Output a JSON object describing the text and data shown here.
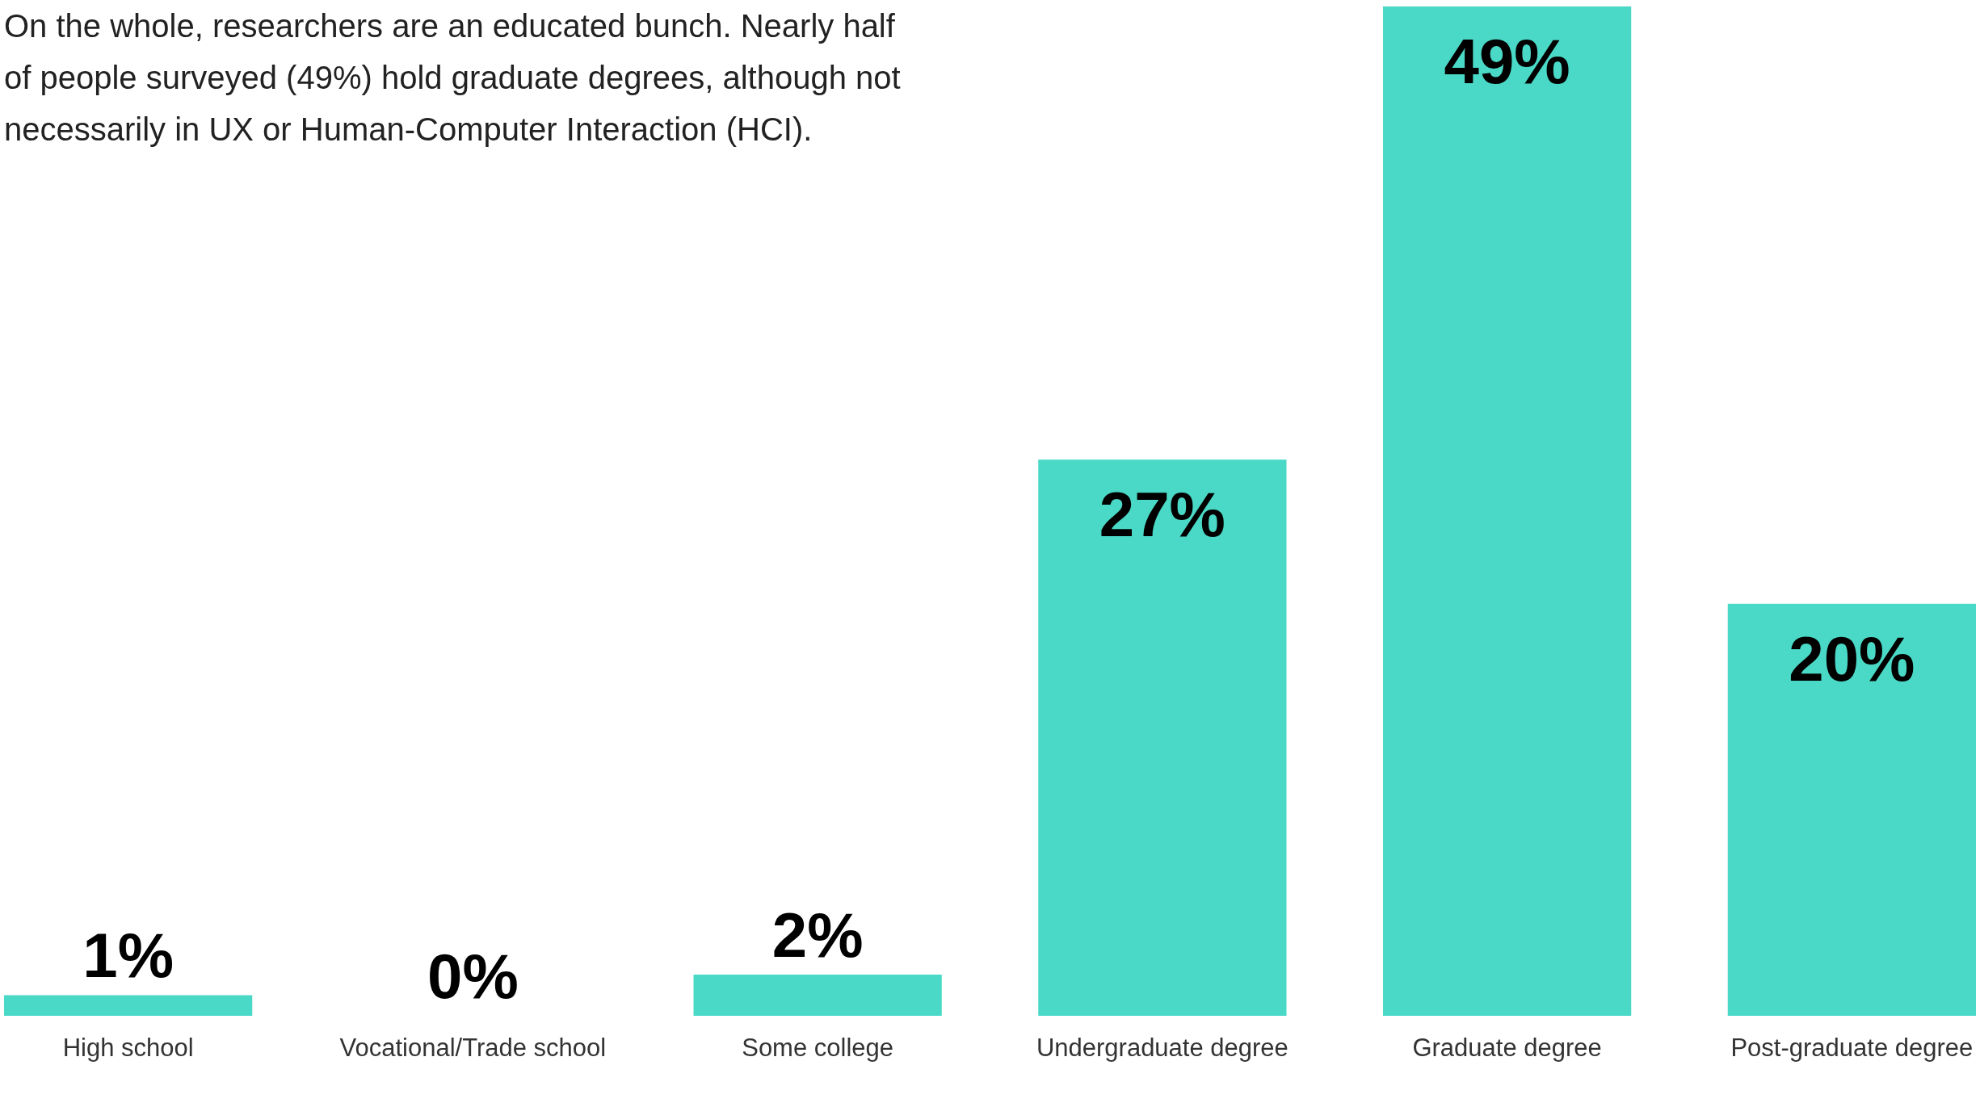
{
  "chart_data": {
    "type": "bar",
    "title": "On the whole, researchers are an educated bunch. Nearly half of people surveyed (49%) hold graduate degrees, although not necessarily in UX or Human-Computer Interaction (HCI).",
    "categories": [
      "High school",
      "Vocational/Trade school",
      "Some college",
      "Undergraduate degree",
      "Graduate degree",
      "Post-graduate degree"
    ],
    "values": [
      1,
      0,
      2,
      27,
      49,
      20
    ],
    "value_labels": [
      "1%",
      "0%",
      "2%",
      "27%",
      "49%",
      "20%"
    ],
    "color": "#4ad9c6",
    "ylim": [
      0,
      49
    ]
  }
}
